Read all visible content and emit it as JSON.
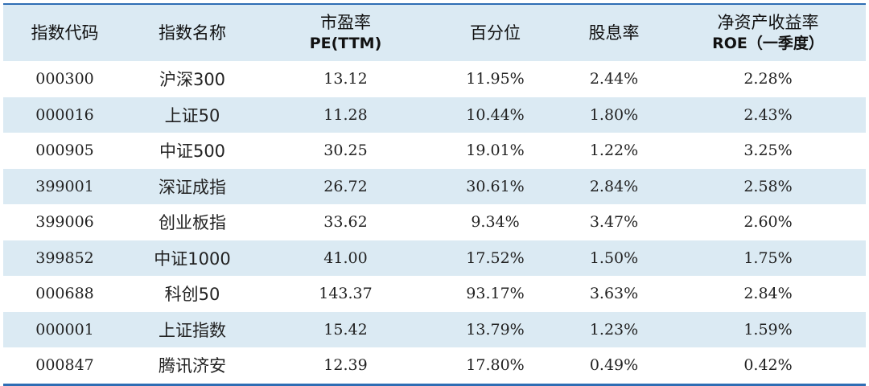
{
  "table": {
    "headers": [
      {
        "main": "指数代码",
        "sub": ""
      },
      {
        "main": "指数名称",
        "sub": ""
      },
      {
        "main": "市盈率",
        "sub": "PE(TTM)"
      },
      {
        "main": "百分位",
        "sub": ""
      },
      {
        "main": "股息率",
        "sub": ""
      },
      {
        "main": "净资产收益率",
        "sub": "ROE（一季度）"
      }
    ],
    "rows": [
      {
        "code": "000300",
        "name": "沪深300",
        "pe": "13.12",
        "pct": "11.95%",
        "dy": "2.44%",
        "roe": "2.28%"
      },
      {
        "code": "000016",
        "name": "上证50",
        "pe": "11.28",
        "pct": "10.44%",
        "dy": "1.80%",
        "roe": "2.43%"
      },
      {
        "code": "000905",
        "name": "中证500",
        "pe": "30.25",
        "pct": "19.01%",
        "dy": "1.22%",
        "roe": "3.25%"
      },
      {
        "code": "399001",
        "name": "深证成指",
        "pe": "26.72",
        "pct": "30.61%",
        "dy": "2.84%",
        "roe": "2.58%"
      },
      {
        "code": "399006",
        "name": "创业板指",
        "pe": "33.62",
        "pct": "9.34%",
        "dy": "3.47%",
        "roe": "2.60%"
      },
      {
        "code": "399852",
        "name": "中证1000",
        "pe": "41.00",
        "pct": "17.52%",
        "dy": "1.50%",
        "roe": "1.75%"
      },
      {
        "code": "000688",
        "name": "科创50",
        "pe": "143.37",
        "pct": "93.17%",
        "dy": "3.63%",
        "roe": "2.84%"
      },
      {
        "code": "000001",
        "name": "上证指数",
        "pe": "15.42",
        "pct": "13.79%",
        "dy": "1.23%",
        "roe": "1.59%"
      },
      {
        "code": "000847",
        "name": "腾讯济安",
        "pe": "12.39",
        "pct": "17.80%",
        "dy": "0.49%",
        "roe": "0.42%"
      }
    ]
  },
  "colors": {
    "header_bg": "#dbeaf3",
    "row_shade": "#dbeaf3",
    "rule": "#2e6db4"
  }
}
